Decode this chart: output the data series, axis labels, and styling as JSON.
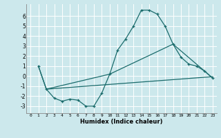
{
  "xlabel": "Humidex (Indice chaleur)",
  "bg_color": "#cce8ec",
  "grid_color": "#ffffff",
  "line_color": "#1a6b6b",
  "xlim": [
    -0.5,
    23.5
  ],
  "ylim": [
    -3.7,
    7.2
  ],
  "yticks": [
    -3,
    -2,
    -1,
    0,
    1,
    2,
    3,
    4,
    5,
    6
  ],
  "xticks": [
    0,
    1,
    2,
    3,
    4,
    5,
    6,
    7,
    8,
    9,
    10,
    11,
    12,
    13,
    14,
    15,
    16,
    17,
    18,
    19,
    20,
    21,
    22,
    23
  ],
  "line1_x": [
    1,
    2,
    3,
    4,
    5,
    6,
    7,
    8,
    9,
    10,
    11,
    12,
    13,
    14,
    15,
    16,
    17,
    18,
    19,
    20,
    21,
    22,
    23
  ],
  "line1_y": [
    1.0,
    -1.3,
    -2.2,
    -2.5,
    -2.3,
    -2.4,
    -3.0,
    -3.0,
    -1.7,
    0.2,
    2.6,
    3.7,
    5.0,
    6.6,
    6.6,
    6.2,
    5.0,
    3.2,
    1.9,
    1.2,
    1.0,
    0.5,
    -0.2
  ],
  "line2_x": [
    1,
    2,
    10,
    18,
    22,
    23
  ],
  "line2_y": [
    1.0,
    -1.3,
    0.2,
    3.2,
    0.5,
    -0.2
  ],
  "line3_x": [
    2,
    23
  ],
  "line3_y": [
    -1.3,
    -0.05
  ]
}
